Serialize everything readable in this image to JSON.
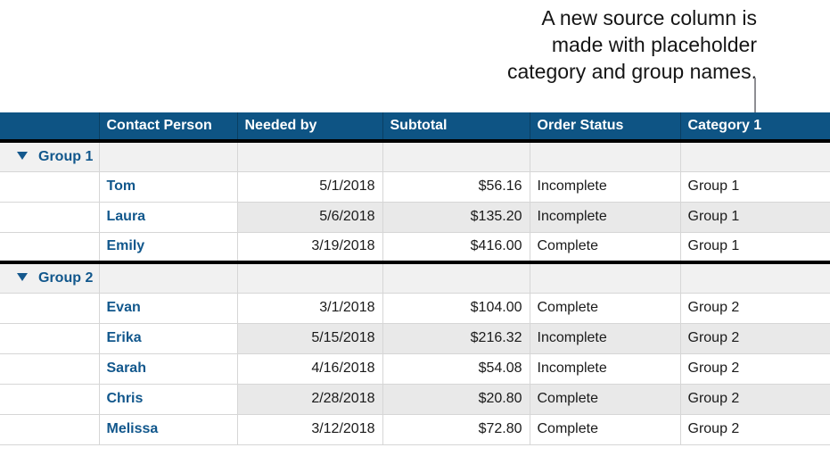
{
  "callout": {
    "line1": "A new source column is",
    "line2": "made with placeholder",
    "line3": "category and group names."
  },
  "table": {
    "headers": {
      "contact": "Contact Person",
      "needed": "Needed by",
      "subtotal": "Subtotal",
      "status": "Order Status",
      "category": "Category 1"
    },
    "groups": [
      {
        "label": "Group 1",
        "disclosure_icon": "triangle-down",
        "rows": [
          {
            "contact": "Tom",
            "needed": "5/1/2018",
            "subtotal": "$56.16",
            "status": "Incomplete",
            "category": "Group 1"
          },
          {
            "contact": "Laura",
            "needed": "5/6/2018",
            "subtotal": "$135.20",
            "status": "Incomplete",
            "category": "Group 1"
          },
          {
            "contact": "Emily",
            "needed": "3/19/2018",
            "subtotal": "$416.00",
            "status": "Complete",
            "category": "Group 1"
          }
        ]
      },
      {
        "label": "Group 2",
        "disclosure_icon": "triangle-down",
        "rows": [
          {
            "contact": "Evan",
            "needed": "3/1/2018",
            "subtotal": "$104.00",
            "status": "Complete",
            "category": "Group 2"
          },
          {
            "contact": "Erika",
            "needed": "5/15/2018",
            "subtotal": "$216.32",
            "status": "Incomplete",
            "category": "Group 2"
          },
          {
            "contact": "Sarah",
            "needed": "4/16/2018",
            "subtotal": "$54.08",
            "status": "Incomplete",
            "category": "Group 2"
          },
          {
            "contact": "Chris",
            "needed": "2/28/2018",
            "subtotal": "$20.80",
            "status": "Complete",
            "category": "Group 2"
          },
          {
            "contact": "Melissa",
            "needed": "3/12/2018",
            "subtotal": "$72.80",
            "status": "Complete",
            "category": "Group 2"
          }
        ]
      }
    ]
  },
  "colors": {
    "header_bg": "#0e5484",
    "header_text": "#ffffff",
    "accent_blue": "#11578c",
    "row_alt_bg": "#e9e9e9",
    "group_row_bg": "#f1f1f1",
    "cell_border": "#d6d6d6",
    "section_border": "#000000",
    "pointer_line": "#8e8e93"
  }
}
